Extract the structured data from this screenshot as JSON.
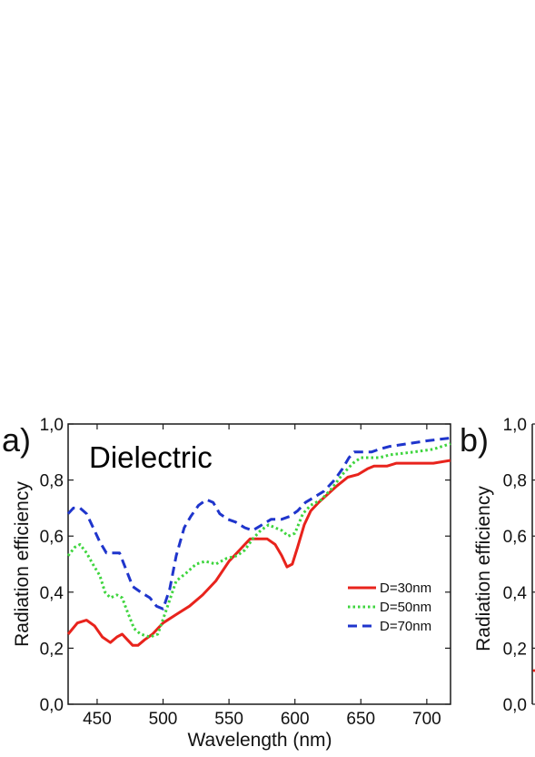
{
  "chart_data": [
    {
      "panel_label": "a)",
      "type": "line",
      "title": "Dielectric",
      "xlabel": "Wavelength (nm)",
      "ylabel": "Radiation efficiency",
      "xlim": [
        428,
        718
      ],
      "ylim": [
        0.0,
        1.0
      ],
      "x_ticks": [
        450,
        500,
        550,
        600,
        650,
        700
      ],
      "x_tick_labels": [
        "450",
        "500",
        "550",
        "600",
        "650",
        "700"
      ],
      "y_ticks": [
        0.0,
        0.2,
        0.4,
        0.6,
        0.8,
        1.0
      ],
      "y_tick_labels": [
        "0,0",
        "0,2",
        "0,4",
        "0,6",
        "0,8",
        "1,0"
      ],
      "grid": false,
      "legend_position": "center-right",
      "series": [
        {
          "name": "D=30nm",
          "color": "#e8231c",
          "dash": "solid",
          "points": [
            [
              428,
              0.25
            ],
            [
              435,
              0.29
            ],
            [
              442,
              0.3
            ],
            [
              448,
              0.28
            ],
            [
              454,
              0.24
            ],
            [
              460,
              0.22
            ],
            [
              465,
              0.24
            ],
            [
              469,
              0.25
            ],
            [
              473,
              0.23
            ],
            [
              477,
              0.21
            ],
            [
              481,
              0.21
            ],
            [
              486,
              0.23
            ],
            [
              492,
              0.25
            ],
            [
              500,
              0.29
            ],
            [
              510,
              0.32
            ],
            [
              520,
              0.35
            ],
            [
              530,
              0.39
            ],
            [
              540,
              0.44
            ],
            [
              550,
              0.51
            ],
            [
              560,
              0.56
            ],
            [
              566,
              0.59
            ],
            [
              572,
              0.59
            ],
            [
              579,
              0.59
            ],
            [
              585,
              0.57
            ],
            [
              590,
              0.53
            ],
            [
              594,
              0.49
            ],
            [
              598,
              0.5
            ],
            [
              602,
              0.56
            ],
            [
              607,
              0.64
            ],
            [
              612,
              0.69
            ],
            [
              618,
              0.72
            ],
            [
              625,
              0.75
            ],
            [
              632,
              0.78
            ],
            [
              640,
              0.81
            ],
            [
              648,
              0.82
            ],
            [
              655,
              0.84
            ],
            [
              660,
              0.85
            ],
            [
              665,
              0.85
            ],
            [
              670,
              0.85
            ],
            [
              677,
              0.86
            ],
            [
              690,
              0.86
            ],
            [
              705,
              0.86
            ],
            [
              718,
              0.87
            ]
          ]
        },
        {
          "name": "D=50nm",
          "color": "#3ed53e",
          "dash": "dotted",
          "points": [
            [
              428,
              0.53
            ],
            [
              433,
              0.56
            ],
            [
              437,
              0.57
            ],
            [
              442,
              0.54
            ],
            [
              448,
              0.49
            ],
            [
              452,
              0.46
            ],
            [
              456,
              0.4
            ],
            [
              460,
              0.38
            ],
            [
              465,
              0.39
            ],
            [
              469,
              0.38
            ],
            [
              473,
              0.33
            ],
            [
              478,
              0.27
            ],
            [
              483,
              0.25
            ],
            [
              490,
              0.24
            ],
            [
              496,
              0.25
            ],
            [
              502,
              0.33
            ],
            [
              510,
              0.44
            ],
            [
              518,
              0.47
            ],
            [
              525,
              0.5
            ],
            [
              532,
              0.51
            ],
            [
              540,
              0.5
            ],
            [
              548,
              0.52
            ],
            [
              556,
              0.53
            ],
            [
              562,
              0.55
            ],
            [
              568,
              0.59
            ],
            [
              574,
              0.62
            ],
            [
              580,
              0.64
            ],
            [
              585,
              0.63
            ],
            [
              590,
              0.62
            ],
            [
              595,
              0.6
            ],
            [
              600,
              0.61
            ],
            [
              606,
              0.68
            ],
            [
              612,
              0.71
            ],
            [
              620,
              0.73
            ],
            [
              628,
              0.77
            ],
            [
              636,
              0.82
            ],
            [
              644,
              0.86
            ],
            [
              650,
              0.88
            ],
            [
              657,
              0.88
            ],
            [
              664,
              0.88
            ],
            [
              672,
              0.89
            ],
            [
              690,
              0.9
            ],
            [
              705,
              0.91
            ],
            [
              718,
              0.93
            ]
          ]
        },
        {
          "name": "D=70nm",
          "color": "#1f35cc",
          "dash": "dashed",
          "points": [
            [
              428,
              0.68
            ],
            [
              432,
              0.7
            ],
            [
              437,
              0.7
            ],
            [
              442,
              0.68
            ],
            [
              447,
              0.63
            ],
            [
              452,
              0.58
            ],
            [
              457,
              0.54
            ],
            [
              462,
              0.54
            ],
            [
              467,
              0.54
            ],
            [
              472,
              0.48
            ],
            [
              477,
              0.42
            ],
            [
              483,
              0.4
            ],
            [
              490,
              0.38
            ],
            [
              495,
              0.35
            ],
            [
              500,
              0.34
            ],
            [
              505,
              0.41
            ],
            [
              510,
              0.53
            ],
            [
              516,
              0.63
            ],
            [
              521,
              0.67
            ],
            [
              527,
              0.71
            ],
            [
              533,
              0.73
            ],
            [
              538,
              0.72
            ],
            [
              543,
              0.68
            ],
            [
              549,
              0.66
            ],
            [
              555,
              0.65
            ],
            [
              562,
              0.63
            ],
            [
              568,
              0.62
            ],
            [
              575,
              0.64
            ],
            [
              582,
              0.66
            ],
            [
              590,
              0.66
            ],
            [
              596,
              0.67
            ],
            [
              602,
              0.69
            ],
            [
              608,
              0.72
            ],
            [
              615,
              0.74
            ],
            [
              622,
              0.76
            ],
            [
              630,
              0.8
            ],
            [
              636,
              0.84
            ],
            [
              641,
              0.88
            ],
            [
              645,
              0.9
            ],
            [
              652,
              0.9
            ],
            [
              658,
              0.9
            ],
            [
              664,
              0.91
            ],
            [
              672,
              0.92
            ],
            [
              686,
              0.93
            ],
            [
              700,
              0.94
            ],
            [
              718,
              0.95
            ]
          ]
        }
      ]
    },
    {
      "panel_label": "b)",
      "type": "line",
      "ylabel": "Radiation efficiency",
      "ylim": [
        0.0,
        1.0
      ],
      "y_ticks": [
        0.0,
        0.2,
        0.4,
        0.6,
        0.8,
        1.0
      ],
      "y_tick_labels": [
        "0,0",
        "0,2",
        "0,4",
        "0,6",
        "0,8",
        "1,0"
      ],
      "grid": false
    }
  ]
}
